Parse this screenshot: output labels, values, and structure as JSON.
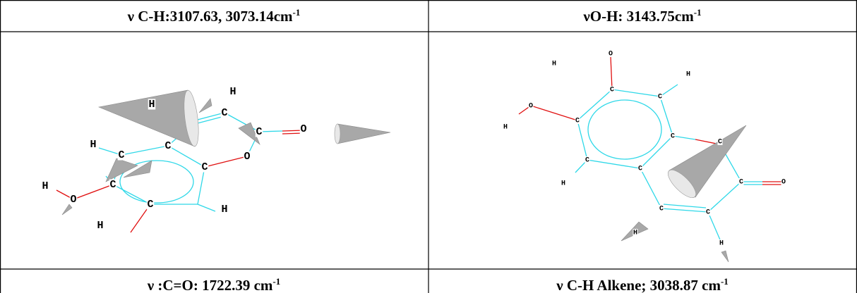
{
  "header": [
    {
      "text": "ν C-H:3107.63, 3073.14cm",
      "sup": "-1"
    },
    {
      "text": "νO-H: 3143.75cm",
      "sup": "-1"
    }
  ],
  "images": [
    {
      "atoms": [
        "H",
        "H",
        "C",
        "C",
        "O",
        "O",
        "C",
        "C",
        "H",
        "C",
        "C",
        "H",
        "O",
        "C",
        "H",
        "H"
      ]
    },
    {
      "atoms": [
        "O",
        "H",
        "H",
        "C",
        "C",
        "O",
        "H",
        "C",
        "C",
        "C",
        "C",
        "C",
        "H",
        "C",
        "O",
        "C",
        "C",
        "H",
        "H"
      ]
    }
  ],
  "captions": [
    {
      "text": "ν :C=O: 1722.39 cm",
      "sup": "-1"
    },
    {
      "text": "ν C-H Alkene; 3038.87 cm",
      "sup": "-1"
    }
  ]
}
